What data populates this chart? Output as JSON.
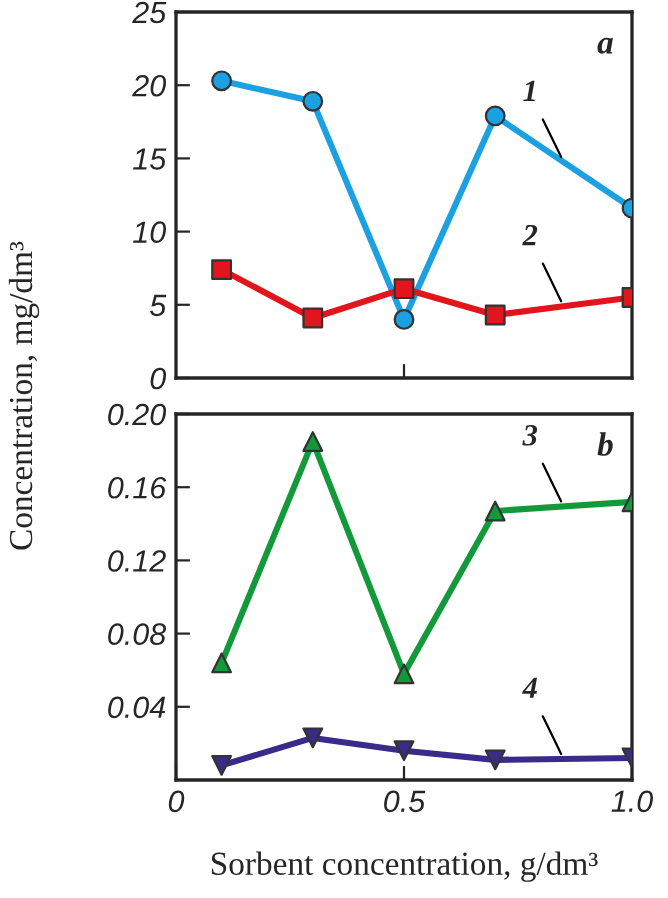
{
  "chart_data": [
    {
      "type": "line",
      "ylabel": "Concentration, mg/dm³",
      "annotations": [
        "a"
      ],
      "x": [
        0.1,
        0.3,
        0.5,
        0.7,
        1.0
      ],
      "xlim": [
        0,
        1.0
      ],
      "xticks": [
        {
          "value": 0.5,
          "label": null
        }
      ],
      "ylim": [
        0,
        25
      ],
      "yticks": [
        0,
        5,
        10,
        15,
        20,
        25
      ],
      "tick_labels": "y",
      "grid": false,
      "legend": false,
      "series": [
        {
          "name": "1",
          "color": "#1ba1e2",
          "marker": "circle",
          "values": [
            20.3,
            18.9,
            4.0,
            17.9,
            11.6
          ]
        },
        {
          "name": "2",
          "color": "#e2141c",
          "marker": "square",
          "values": [
            7.4,
            4.1,
            6.1,
            4.3,
            5.5
          ]
        }
      ]
    },
    {
      "type": "line",
      "xlabel": "Sorbent concentration, g/dm³",
      "annotations": [
        "b"
      ],
      "x": [
        0.1,
        0.3,
        0.5,
        0.7,
        1.0
      ],
      "xlim": [
        0,
        1.0
      ],
      "xticks": [
        0,
        0.5,
        {
          "value": 1.0,
          "label": "1.0"
        }
      ],
      "ylim": [
        0,
        0.2
      ],
      "yticks": [
        0.04,
        0.08,
        0.12,
        0.16,
        {
          "value": 0.2,
          "label": "0.20"
        }
      ],
      "grid": false,
      "legend": false,
      "series": [
        {
          "name": "3",
          "color": "#129a3a",
          "marker": "triangle",
          "values": [
            0.064,
            0.185,
            0.058,
            0.147,
            0.152
          ]
        },
        {
          "name": "4",
          "color": "#3a2a8a",
          "marker": "triangle_down",
          "values": [
            0.008,
            0.023,
            0.016,
            0.011,
            0.012
          ]
        }
      ]
    }
  ]
}
